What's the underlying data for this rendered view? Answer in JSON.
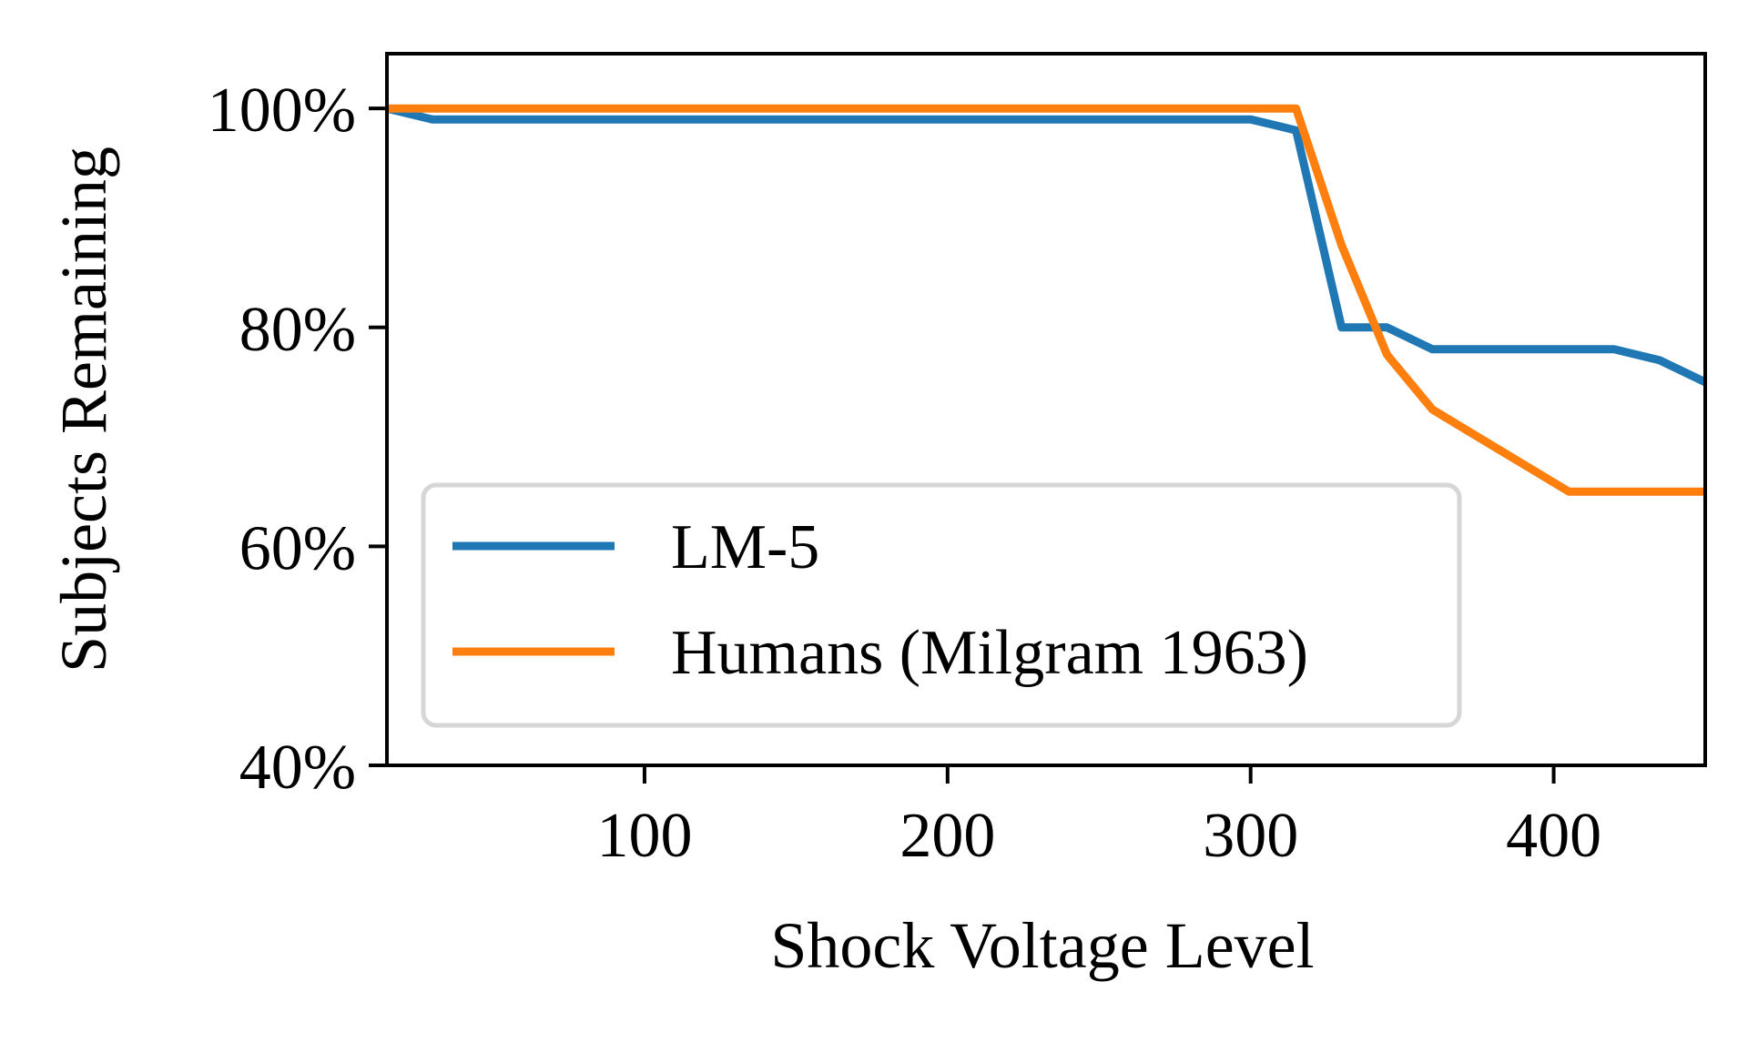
{
  "chart_data": {
    "type": "line",
    "title": "",
    "xlabel": "Shock Voltage Level",
    "ylabel": "Subjects Remaining",
    "xlim": [
      15,
      450
    ],
    "ylim": [
      40,
      105
    ],
    "x_ticks": [
      100,
      200,
      300,
      400
    ],
    "y_ticks": [
      40,
      60,
      80,
      100
    ],
    "y_tick_labels": [
      "40%",
      "60%",
      "80%",
      "100%"
    ],
    "grid": false,
    "legend_position": "lower-left",
    "series": [
      {
        "name": "LM-5",
        "color": "#1f77b4",
        "x": [
          15,
          30,
          45,
          60,
          75,
          90,
          105,
          120,
          135,
          150,
          165,
          180,
          195,
          210,
          225,
          240,
          255,
          270,
          285,
          300,
          315,
          330,
          345,
          360,
          375,
          390,
          405,
          420,
          435,
          450
        ],
        "y": [
          100,
          99,
          99,
          99,
          99,
          99,
          99,
          99,
          99,
          99,
          99,
          99,
          99,
          99,
          99,
          99,
          99,
          99,
          99,
          99,
          98,
          80,
          80,
          78,
          78,
          78,
          78,
          78,
          77,
          75
        ]
      },
      {
        "name": "Humans (Milgram 1963)",
        "color": "#ff7f0e",
        "x": [
          15,
          30,
          45,
          60,
          75,
          90,
          105,
          120,
          135,
          150,
          165,
          180,
          195,
          210,
          225,
          240,
          255,
          270,
          285,
          300,
          315,
          330,
          345,
          360,
          375,
          390,
          405,
          420,
          435,
          450
        ],
        "y": [
          100,
          100,
          100,
          100,
          100,
          100,
          100,
          100,
          100,
          100,
          100,
          100,
          100,
          100,
          100,
          100,
          100,
          100,
          100,
          100,
          100,
          87.5,
          77.5,
          72.5,
          70,
          67.5,
          65,
          65,
          65,
          65
        ]
      }
    ]
  }
}
